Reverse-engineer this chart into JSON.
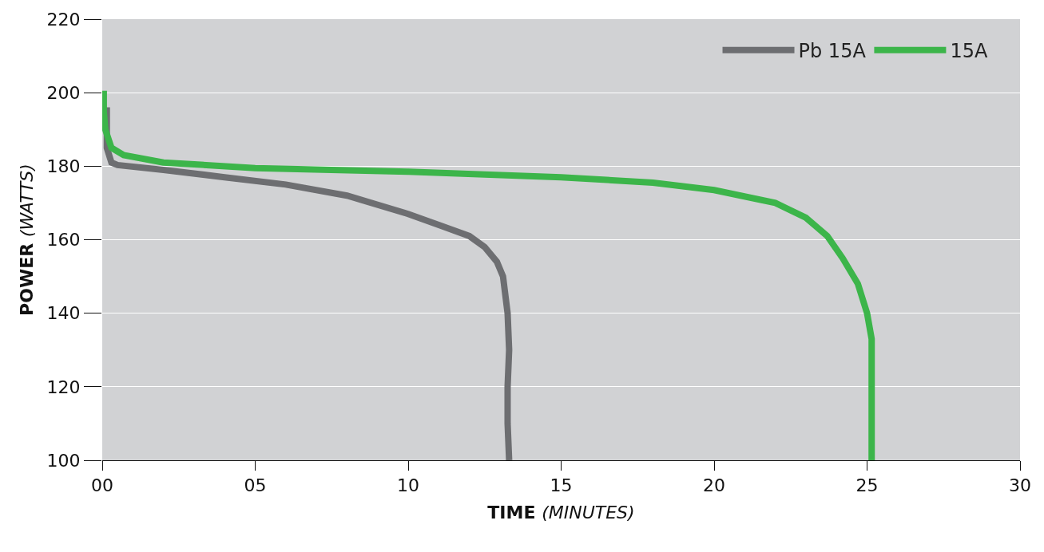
{
  "chart_data": {
    "type": "line",
    "xlabel": "TIME (MINUTES)",
    "ylabel": "POWER (WATTS)",
    "xlim": [
      0,
      30
    ],
    "xticks": [
      {
        "value": 0,
        "label": "00"
      },
      {
        "value": 5,
        "label": "05"
      },
      10,
      15,
      20,
      25,
      30
    ],
    "ylim": [
      100,
      220
    ],
    "yticks": [
      100,
      120,
      140,
      160,
      180,
      200,
      220
    ],
    "grid": "y",
    "legend": "top right",
    "marker": "none",
    "line_style": "solid",
    "series": [
      {
        "name": "Pb 15A",
        "color": "#6d6e71",
        "x": [
          0.15,
          0.15,
          0.3,
          0.5,
          2,
          4,
          6,
          8,
          10,
          11,
          12,
          12.5,
          12.9,
          13.1,
          13.25,
          13.3,
          13.25,
          13.25,
          13.3
        ],
        "values": [
          196,
          185,
          181,
          180.3,
          179,
          177,
          175,
          172,
          167,
          164,
          161,
          158,
          154,
          150,
          140,
          130,
          120,
          110,
          100
        ]
      },
      {
        "name": "15A",
        "color": "#3cb54a",
        "x": [
          0.05,
          0.05,
          0.1,
          0.3,
          0.7,
          2,
          5,
          10,
          15,
          18,
          20,
          22,
          23,
          23.7,
          24.2,
          24.7,
          25,
          25.15,
          25.15,
          25.15
        ],
        "values": [
          200.5,
          195,
          190,
          185,
          183,
          181,
          179.5,
          178.5,
          177,
          175.5,
          173.5,
          170,
          166,
          161,
          155,
          148,
          140,
          133,
          120,
          100
        ]
      }
    ]
  }
}
